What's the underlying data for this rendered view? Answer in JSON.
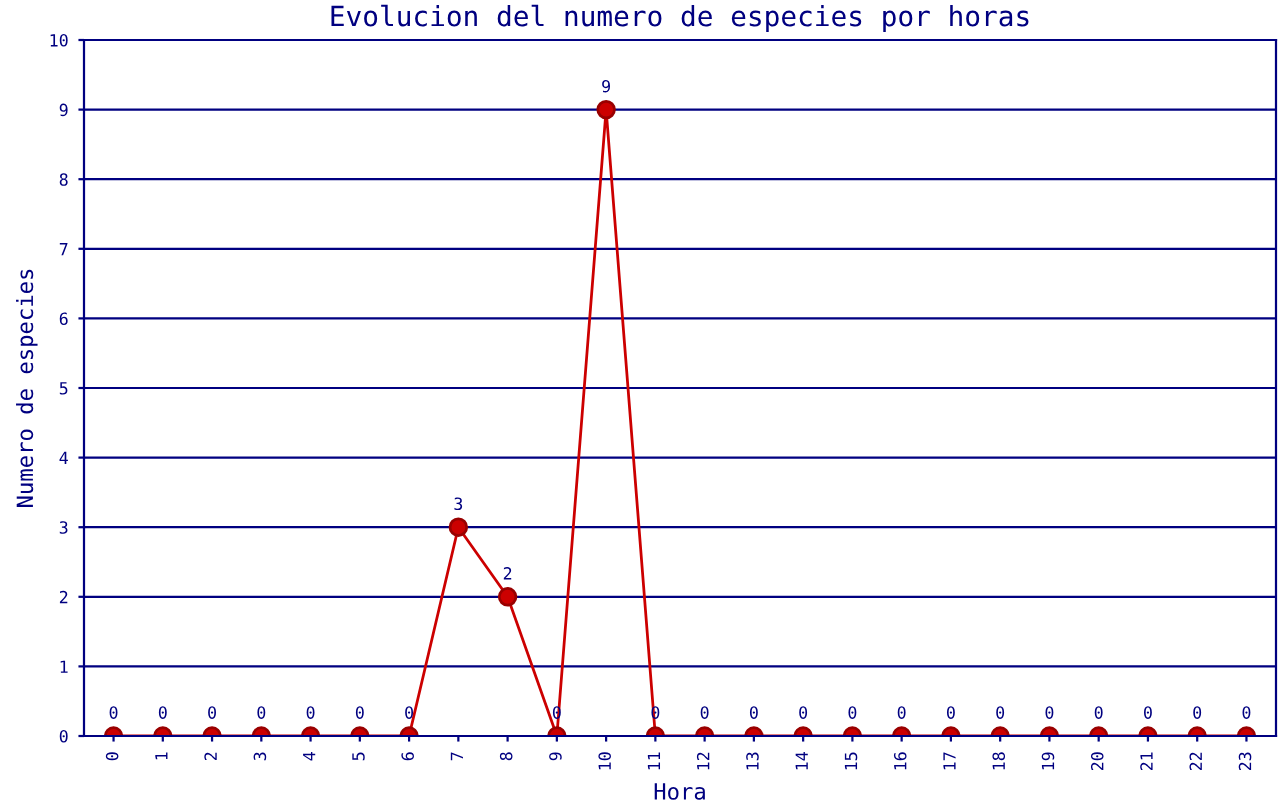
{
  "chart_data": {
    "type": "line",
    "title": "Evolucion del numero de especies por horas",
    "xlabel": "Hora",
    "ylabel": "Numero de especies",
    "categories": [
      "0",
      "1",
      "2",
      "3",
      "4",
      "5",
      "6",
      "7",
      "8",
      "9",
      "10",
      "11",
      "12",
      "13",
      "14",
      "15",
      "16",
      "17",
      "18",
      "19",
      "20",
      "21",
      "22",
      "23"
    ],
    "series": [
      {
        "color": "#cc0000",
        "values": [
          0,
          0,
          0,
          0,
          0,
          0,
          0,
          3,
          2,
          0,
          9,
          0,
          0,
          0,
          0,
          0,
          0,
          0,
          0,
          0,
          0,
          0,
          0,
          0
        ]
      }
    ],
    "ylim": [
      0,
      10
    ],
    "yticks": [
      0,
      1,
      2,
      3,
      4,
      5,
      6,
      7,
      8,
      9,
      10
    ],
    "grid": "y",
    "marker": "circle",
    "data_labels": true,
    "legend": false
  }
}
